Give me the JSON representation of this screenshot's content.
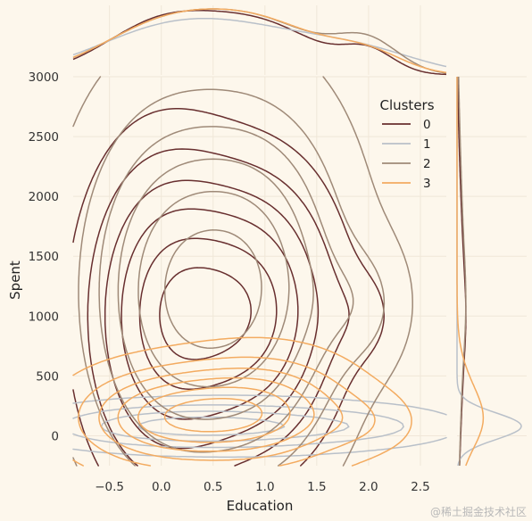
{
  "chart_data": {
    "type": "kde_joint",
    "xlabel": "Education",
    "ylabel": "Spent",
    "xlim": [
      -0.85,
      2.75
    ],
    "ylim": [
      -250,
      3000
    ],
    "x_ticks": [
      -0.5,
      0.0,
      0.5,
      1.0,
      1.5,
      2.0,
      2.5
    ],
    "x_tick_labels": [
      "−0.5",
      "0.0",
      "0.5",
      "1.0",
      "1.5",
      "2.0",
      "2.5"
    ],
    "y_ticks": [
      0,
      500,
      1000,
      1500,
      2000,
      2500,
      3000
    ],
    "y_tick_labels": [
      "0",
      "500",
      "1000",
      "1500",
      "2000",
      "2500",
      "3000"
    ],
    "grid": true,
    "legend": {
      "title": "Clusters",
      "placement": "top-right",
      "entries": [
        {
          "label": "0",
          "color": "#682f2f"
        },
        {
          "label": "1",
          "color": "#b9c0c9"
        },
        {
          "label": "2",
          "color": "#9f8a78"
        },
        {
          "label": "3",
          "color": "#f3ab60"
        }
      ]
    },
    "series": [
      {
        "name": "0",
        "color": "#682f2f",
        "modes": [
          {
            "x": 0.0,
            "y": 1000,
            "sx": 0.55,
            "sy": 1000,
            "w": 1.0
          },
          {
            "x": 1.0,
            "y": 1050,
            "sx": 0.55,
            "sy": 850,
            "w": 0.9
          },
          {
            "x": 2.0,
            "y": 1000,
            "sx": 0.25,
            "sy": 300,
            "w": 0.18
          }
        ],
        "levels": [
          0.2,
          0.35,
          0.5,
          0.65,
          0.8,
          0.92
        ]
      },
      {
        "name": "1",
        "color": "#b9c0c9",
        "modes": [
          {
            "x": 0.0,
            "y": 80,
            "sx": 0.7,
            "sy": 110,
            "w": 1.0
          },
          {
            "x": 1.0,
            "y": 80,
            "sx": 0.7,
            "sy": 120,
            "w": 0.8
          },
          {
            "x": 2.0,
            "y": 80,
            "sx": 0.55,
            "sy": 100,
            "w": 0.35
          }
        ],
        "levels": [
          0.08,
          0.3,
          0.55,
          0.8
        ]
      },
      {
        "name": "2",
        "color": "#9f8a78",
        "modes": [
          {
            "x": 0.0,
            "y": 1200,
            "sx": 0.6,
            "sy": 1100,
            "w": 1.0
          },
          {
            "x": 1.0,
            "y": 1250,
            "sx": 0.6,
            "sy": 1050,
            "w": 1.0
          },
          {
            "x": 2.0,
            "y": 1100,
            "sx": 0.3,
            "sy": 380,
            "w": 0.3
          }
        ],
        "levels": [
          0.12,
          0.3,
          0.45,
          0.6,
          0.75,
          0.9
        ]
      },
      {
        "name": "3",
        "color": "#f3ab60",
        "modes": [
          {
            "x": 0.0,
            "y": 150,
            "sx": 0.6,
            "sy": 280,
            "w": 1.0
          },
          {
            "x": 1.0,
            "y": 200,
            "sx": 0.6,
            "sy": 320,
            "w": 1.0
          },
          {
            "x": 2.0,
            "y": 110,
            "sx": 0.35,
            "sy": 180,
            "w": 0.22
          }
        ],
        "levels": [
          0.12,
          0.3,
          0.45,
          0.6,
          0.75,
          0.9
        ]
      }
    ]
  },
  "watermark": "@稀土掘金技术社区"
}
